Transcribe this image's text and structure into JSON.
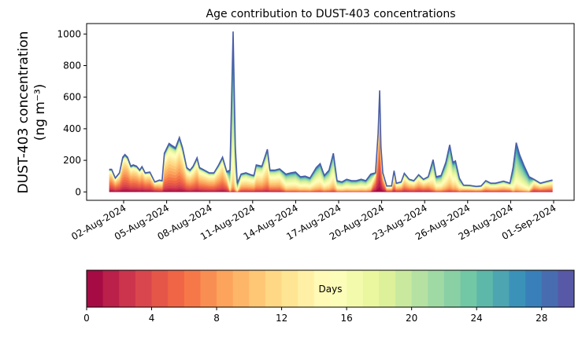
{
  "chart_data": {
    "type": "area",
    "stacked": true,
    "title": "Age contribution to DUST-403 concentrations",
    "ylabel_line1": "DUST-403 concentration",
    "ylabel_line2": "(ng m⁻³)",
    "xlabel": "",
    "x_origin_date": "01-Aug-2024",
    "ylim": [
      -50,
      1060
    ],
    "xlim_days": [
      -2.5,
      31.5
    ],
    "yticks": [
      0,
      200,
      400,
      600,
      800,
      1000
    ],
    "xtick_labels": [
      "02-Aug-2024",
      "05-Aug-2024",
      "08-Aug-2024",
      "11-Aug-2024",
      "14-Aug-2024",
      "17-Aug-2024",
      "20-Aug-2024",
      "23-Aug-2024",
      "26-Aug-2024",
      "29-Aug-2024",
      "01-Sep-2024"
    ],
    "xtick_days": [
      1,
      4,
      7,
      10,
      13,
      16,
      19,
      22,
      25,
      28,
      31
    ],
    "total": {
      "days": [
        0,
        0.16,
        0.42,
        0.71,
        0.94,
        1.09,
        1.27,
        1.5,
        1.67,
        1.9,
        2.12,
        2.28,
        2.5,
        2.83,
        3.17,
        3.5,
        3.68,
        3.84,
        4.17,
        4.4,
        4.62,
        4.89,
        5.11,
        5.4,
        5.63,
        5.85,
        6.12,
        6.29,
        6.63,
        6.96,
        7.3,
        7.63,
        7.9,
        8.19,
        8.42,
        8.64,
        8.79,
        8.93,
        9.2,
        9.53,
        9.87,
        10.09,
        10.25,
        10.65,
        11.03,
        11.21,
        11.54,
        11.88,
        12.32,
        12.66,
        12.99,
        13.33,
        13.66,
        14.0,
        14.44,
        14.71,
        15.0,
        15.33,
        15.63,
        15.89,
        16.23,
        16.56,
        16.9,
        17.23,
        17.57,
        17.9,
        18.24,
        18.57,
        18.75,
        18.86,
        18.95,
        19.08,
        19.35,
        19.69,
        19.87,
        20.02,
        20.36,
        20.58,
        20.92,
        21.25,
        21.58,
        21.92,
        22.25,
        22.59,
        22.81,
        23.15,
        23.48,
        23.75,
        23.97,
        24.15,
        24.42,
        24.71,
        25.16,
        25.6,
        25.94,
        26.27,
        26.61,
        26.94,
        27.5,
        27.95,
        28.17,
        28.39,
        28.62,
        28.95,
        29.29,
        29.62,
        30.07,
        30.51,
        30.92
      ],
      "values": [
        143,
        143,
        88,
        121,
        220,
        237,
        220,
        163,
        171,
        163,
        138,
        160,
        121,
        126,
        63,
        75,
        71,
        245,
        307,
        292,
        279,
        345,
        279,
        154,
        138,
        163,
        216,
        154,
        138,
        121,
        121,
        171,
        220,
        129,
        138,
        1016,
        287,
        55,
        113,
        121,
        109,
        104,
        171,
        163,
        270,
        138,
        138,
        146,
        113,
        121,
        126,
        96,
        100,
        88,
        154,
        179,
        104,
        138,
        245,
        71,
        63,
        80,
        71,
        71,
        80,
        71,
        113,
        121,
        370,
        643,
        287,
        121,
        38,
        38,
        134,
        55,
        63,
        118,
        80,
        71,
        109,
        80,
        96,
        204,
        96,
        104,
        187,
        298,
        187,
        196,
        88,
        43,
        41,
        35,
        38,
        71,
        55,
        55,
        68,
        55,
        154,
        312,
        237,
        163,
        96,
        80,
        55,
        66,
        75
      ]
    },
    "age_bins_days": 30,
    "mean_age_segments": [
      [
        0,
        3.2,
        7
      ],
      [
        3.2,
        8.3,
        9
      ],
      [
        8.3,
        9.0,
        20
      ],
      [
        9.0,
        12,
        12
      ],
      [
        12,
        18.3,
        16
      ],
      [
        18.3,
        19.1,
        5
      ],
      [
        19.1,
        22.5,
        10
      ],
      [
        22.5,
        24.5,
        16
      ],
      [
        24.5,
        28,
        12
      ],
      [
        28,
        29.5,
        20
      ],
      [
        29.5,
        31,
        10
      ]
    ],
    "colormap": [
      "#9e0142",
      "#d53e4f",
      "#f46d43",
      "#fdae61",
      "#fee08b",
      "#ffffbf",
      "#e6f598",
      "#abdda4",
      "#66c2a5",
      "#3288bd",
      "#5e4fa2"
    ],
    "colorbar": {
      "label": "Days",
      "range": [
        0,
        30
      ],
      "ticks": [
        "0",
        "4",
        "8",
        "12",
        "16",
        "20",
        "24",
        "28"
      ],
      "tick_values": [
        0,
        4,
        8,
        12,
        16,
        20,
        24,
        28
      ]
    }
  }
}
